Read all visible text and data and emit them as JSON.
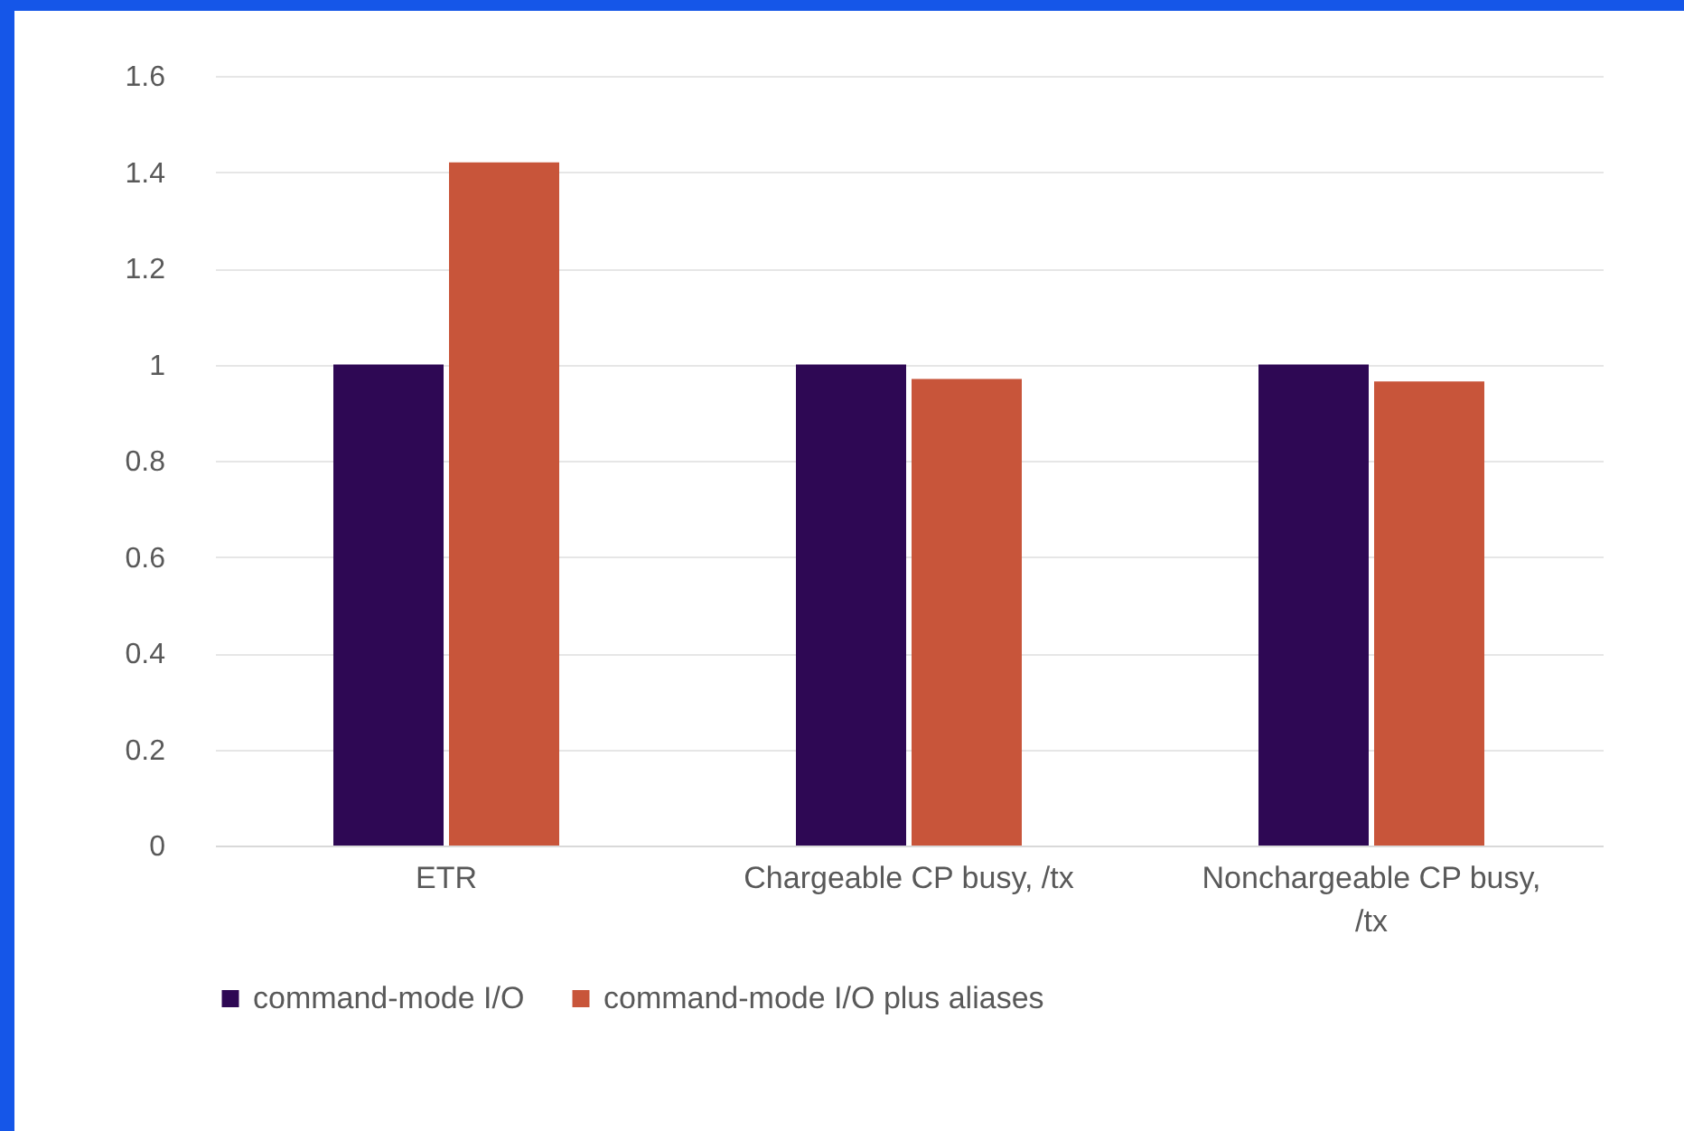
{
  "chart_data": {
    "type": "bar",
    "categories": [
      "ETR",
      "Chargeable CP busy, /tx",
      "Nonchargeable CP busy, /tx"
    ],
    "series": [
      {
        "name": "command-mode I/O",
        "color": "#2e0854",
        "values": [
          1,
          1,
          1
        ]
      },
      {
        "name": "command-mode I/O plus aliases",
        "color": "#c8553a",
        "values": [
          1.42,
          0.97,
          0.965
        ]
      }
    ],
    "ylim": [
      0,
      1.6
    ],
    "yticks": [
      0,
      0.2,
      0.4,
      0.6,
      0.8,
      1,
      1.2,
      1.4,
      1.6
    ],
    "grid": "y",
    "legend": "bottom"
  }
}
